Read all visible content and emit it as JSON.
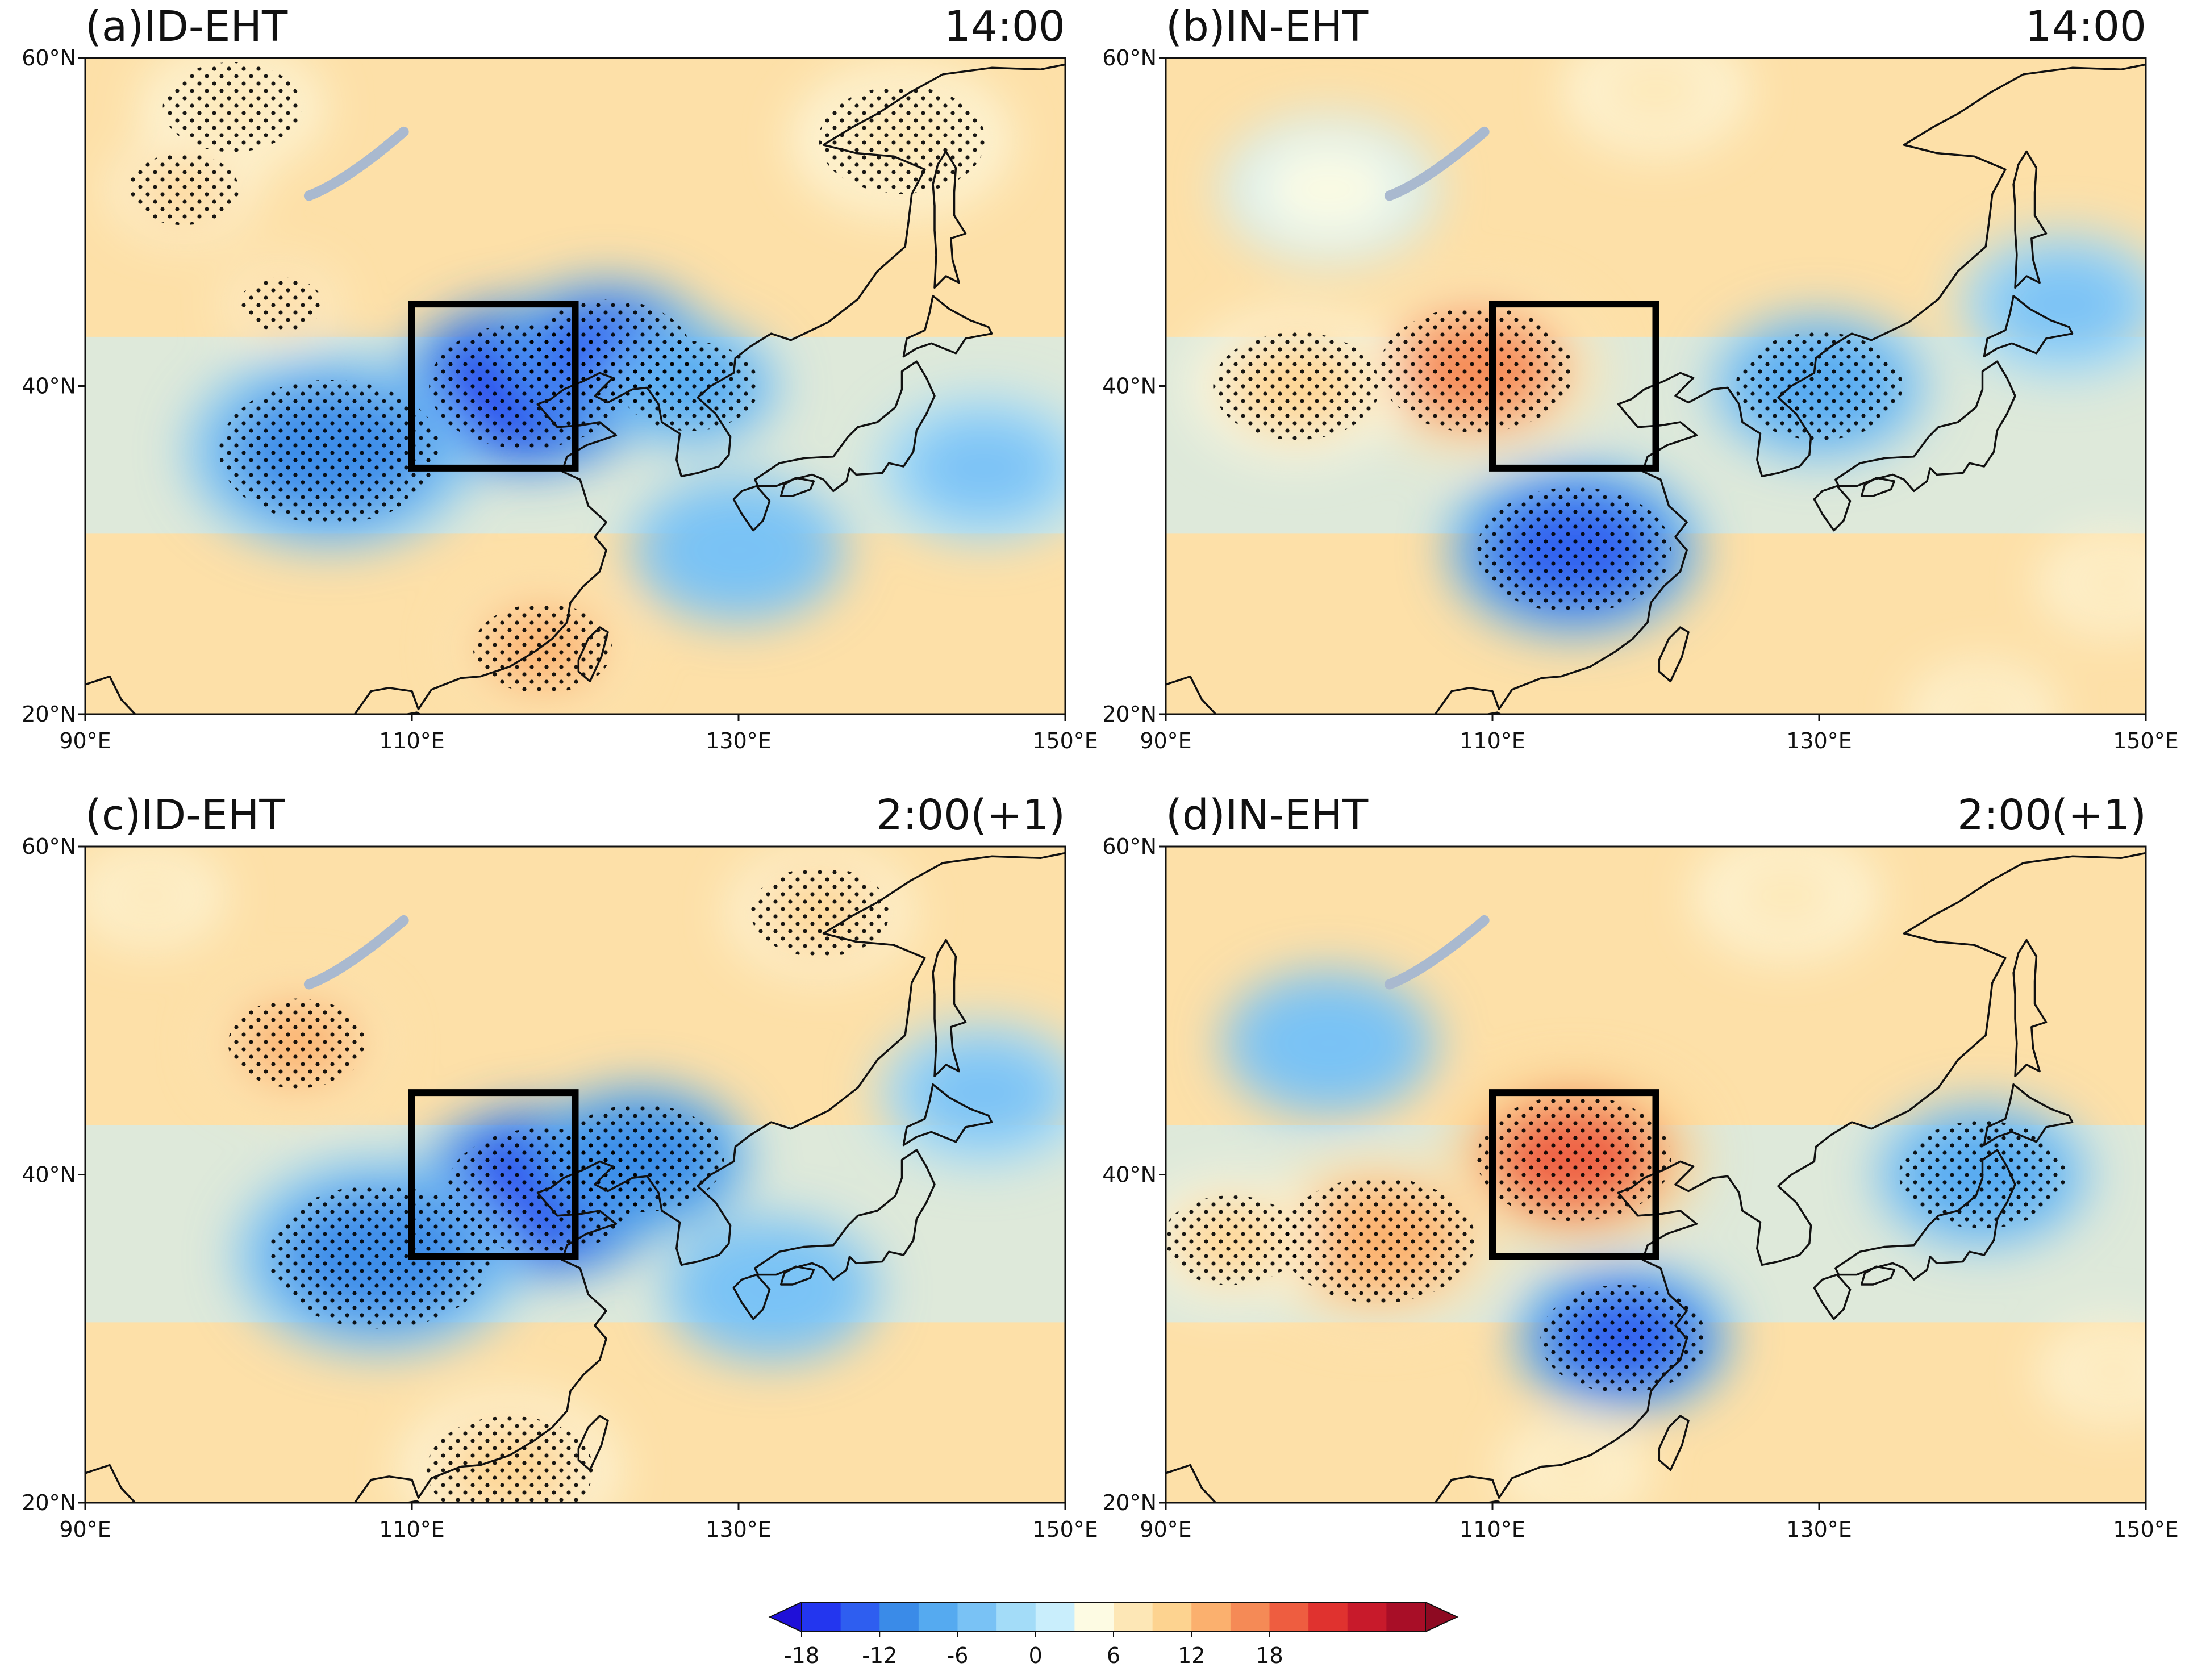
{
  "figure": {
    "colors": {
      "negative_strong": "#1f10d8",
      "negative_mid": "#3a8be8",
      "negative_weak": "#c9eefc",
      "neutral": "#fdfbe3",
      "positive_weak": "#fde0a8",
      "positive_mid": "#f26a4b",
      "positive_strong": "#8e0a22",
      "coastline": "#111111",
      "lakes": "#a9b9cf",
      "box": "#000000"
    },
    "map_extent": {
      "lon": [
        90,
        150
      ],
      "lat": [
        20,
        60
      ]
    },
    "lon_ticks": [
      "90°E",
      "110°E",
      "130°E",
      "150°E"
    ],
    "lat_ticks": [
      "20°N",
      "40°N",
      "60°N"
    ],
    "highlight_box": {
      "lon": [
        110,
        120
      ],
      "lat": [
        35,
        45
      ]
    },
    "panels": [
      {
        "id": "a",
        "label": "(a)ID-EHT",
        "time": "14:00",
        "anomalies": [
          {
            "lon": 117,
            "lat": 40,
            "value": -18,
            "radius": 7
          },
          {
            "lon": 122,
            "lat": 42,
            "value": -14,
            "radius": 6
          },
          {
            "lon": 105,
            "lat": 36,
            "value": -10,
            "radius": 8
          },
          {
            "lon": 127,
            "lat": 40,
            "value": -8,
            "radius": 5
          },
          {
            "lon": 118,
            "lat": 24,
            "value": 12,
            "radius": 5
          },
          {
            "lon": 99,
            "lat": 57,
            "value": 8,
            "radius": 5
          },
          {
            "lon": 140,
            "lat": 55,
            "value": 8,
            "radius": 6
          },
          {
            "lon": 96,
            "lat": 52,
            "value": 10,
            "radius": 4
          },
          {
            "lon": 102,
            "lat": 45,
            "value": 10,
            "radius": 3
          },
          {
            "lon": 130,
            "lat": 30,
            "value": -6,
            "radius": 6
          },
          {
            "lon": 145,
            "lat": 35,
            "value": -4,
            "radius": 6
          }
        ]
      },
      {
        "id": "b",
        "label": "(b)IN-EHT",
        "time": "14:00",
        "anomalies": [
          {
            "lon": 109,
            "lat": 41,
            "value": 16,
            "radius": 7
          },
          {
            "lon": 98,
            "lat": 40,
            "value": 10,
            "radius": 6
          },
          {
            "lon": 115,
            "lat": 30,
            "value": -14,
            "radius": 7
          },
          {
            "lon": 130,
            "lat": 40,
            "value": -8,
            "radius": 6
          },
          {
            "lon": 145,
            "lat": 45,
            "value": -4,
            "radius": 6
          },
          {
            "lon": 148,
            "lat": 28,
            "value": 6,
            "radius": 4
          },
          {
            "lon": 140,
            "lat": 20,
            "value": 6,
            "radius": 4
          },
          {
            "lon": 120,
            "lat": 58,
            "value": 6,
            "radius": 5
          },
          {
            "lon": 100,
            "lat": 52,
            "value": 4,
            "radius": 6
          }
        ]
      },
      {
        "id": "c",
        "label": "(c)ID-EHT",
        "time": "2:00(+1)",
        "anomalies": [
          {
            "lon": 118,
            "lat": 39,
            "value": -18,
            "radius": 7
          },
          {
            "lon": 124,
            "lat": 41,
            "value": -12,
            "radius": 6
          },
          {
            "lon": 108,
            "lat": 35,
            "value": -10,
            "radius": 8
          },
          {
            "lon": 132,
            "lat": 33,
            "value": -6,
            "radius": 6
          },
          {
            "lon": 103,
            "lat": 48,
            "value": 12,
            "radius": 5
          },
          {
            "lon": 135,
            "lat": 56,
            "value": 10,
            "radius": 5
          },
          {
            "lon": 116,
            "lat": 22,
            "value": 10,
            "radius": 6
          },
          {
            "lon": 145,
            "lat": 45,
            "value": -4,
            "radius": 6
          },
          {
            "lon": 94,
            "lat": 57,
            "value": 6,
            "radius": 4
          }
        ]
      },
      {
        "id": "d",
        "label": "(d)IN-EHT",
        "time": "2:00(+1)",
        "anomalies": [
          {
            "lon": 115,
            "lat": 41,
            "value": 20,
            "radius": 7
          },
          {
            "lon": 103,
            "lat": 36,
            "value": 12,
            "radius": 7
          },
          {
            "lon": 94,
            "lat": 36,
            "value": 10,
            "radius": 5
          },
          {
            "lon": 118,
            "lat": 30,
            "value": -14,
            "radius": 6
          },
          {
            "lon": 140,
            "lat": 40,
            "value": -8,
            "radius": 6
          },
          {
            "lon": 100,
            "lat": 48,
            "value": -6,
            "radius": 6
          },
          {
            "lon": 128,
            "lat": 57,
            "value": 6,
            "radius": 5
          },
          {
            "lon": 148,
            "lat": 28,
            "value": 6,
            "radius": 4
          },
          {
            "lon": 115,
            "lat": 22,
            "value": 6,
            "radius": 4
          }
        ]
      }
    ],
    "colorbar": {
      "ticks": [
        "-18",
        "-12",
        "-6",
        "0",
        "6",
        "12",
        "18"
      ],
      "levels": [
        -21,
        -18,
        -15,
        -12,
        -9,
        -6,
        -3,
        0,
        3,
        6,
        9,
        12,
        15,
        18,
        21
      ],
      "palette": [
        "#1f10d8",
        "#2336ef",
        "#2e5ef0",
        "#3a8be8",
        "#55aaf0",
        "#79c2f5",
        "#a3dcf8",
        "#c9eefc",
        "#fdfbe3",
        "#fde7b6",
        "#fdd390",
        "#fbb06e",
        "#f58a56",
        "#ee5d40",
        "#e0322f",
        "#c81a2b",
        "#a80e27",
        "#8e0a22"
      ]
    }
  }
}
